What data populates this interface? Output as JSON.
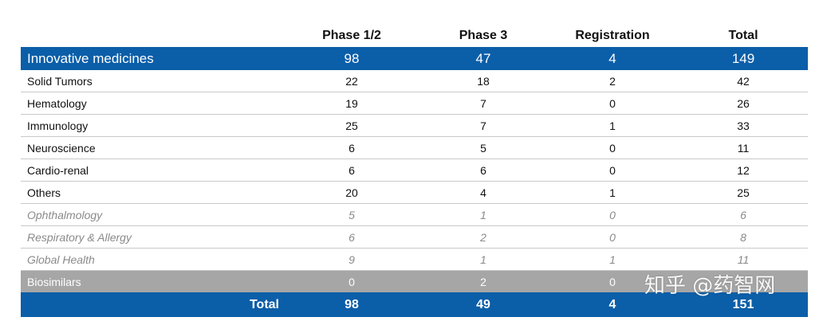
{
  "columns": [
    "Phase 1/2",
    "Phase 3",
    "Registration",
    "Total"
  ],
  "innovative": {
    "label": "Innovative medicines",
    "values": [
      "98",
      "47",
      "4",
      "149"
    ]
  },
  "rows": [
    {
      "label": "Solid Tumors",
      "values": [
        "22",
        "18",
        "2",
        "42"
      ]
    },
    {
      "label": "Hematology",
      "values": [
        "19",
        "7",
        "0",
        "26"
      ]
    },
    {
      "label": "Immunology",
      "values": [
        "25",
        "7",
        "1",
        "33"
      ]
    },
    {
      "label": "Neuroscience",
      "values": [
        "6",
        "5",
        "0",
        "11"
      ]
    },
    {
      "label": "Cardio-renal",
      "values": [
        "6",
        "6",
        "0",
        "12"
      ]
    },
    {
      "label": "Others",
      "values": [
        "20",
        "4",
        "1",
        "25"
      ]
    }
  ],
  "sub_rows": [
    {
      "label": "Ophthalmology",
      "values": [
        "5",
        "1",
        "0",
        "6"
      ]
    },
    {
      "label": "Respiratory & Allergy",
      "values": [
        "6",
        "2",
        "0",
        "8"
      ]
    },
    {
      "label": "Global Health",
      "values": [
        "9",
        "1",
        "1",
        "11"
      ]
    }
  ],
  "biosimilars": {
    "label": "Biosimilars",
    "values": [
      "0",
      "2",
      "0",
      ""
    ]
  },
  "total": {
    "label": "Total",
    "values": [
      "98",
      "49",
      "4",
      "151"
    ]
  },
  "watermark": "知乎 @药智网"
}
